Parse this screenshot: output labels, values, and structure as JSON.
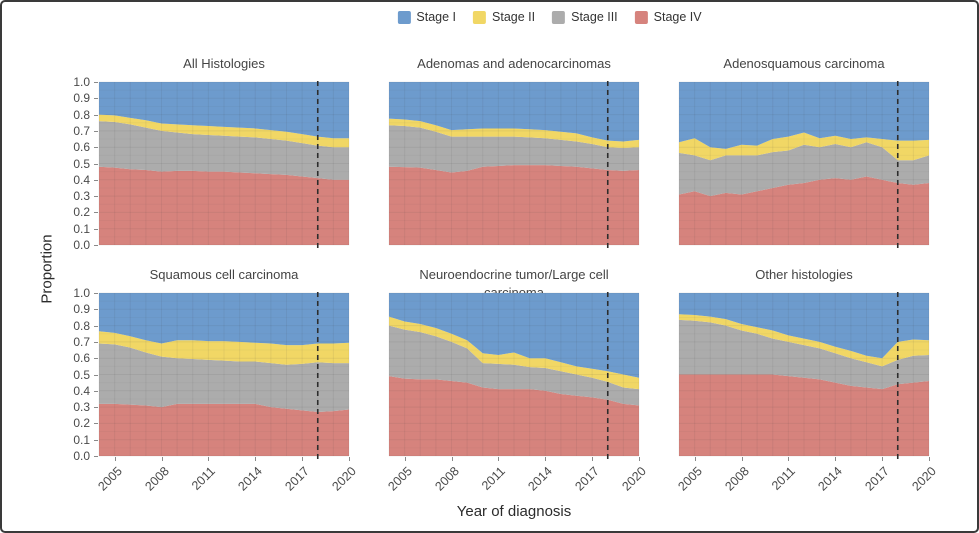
{
  "legend": {
    "items": [
      {
        "label": "Stage I",
        "color": "#6d9bcd"
      },
      {
        "label": "Stage II",
        "color": "#f1d765"
      },
      {
        "label": "Stage III",
        "color": "#acacac"
      },
      {
        "label": "Stage IV",
        "color": "#d6837d"
      }
    ]
  },
  "axes": {
    "y_label": "Proportion",
    "x_label": "Year of diagnosis",
    "y_tick_labels": [
      "1.0",
      "0.9",
      "0.8",
      "0.7",
      "0.6",
      "0.5",
      "0.4",
      "0.3",
      "0.2",
      "0.1",
      "0.0"
    ],
    "x_tick_labels": [
      "2005",
      "2008",
      "2011",
      "2014",
      "2017",
      "2020"
    ],
    "x_tick_years": [
      2005,
      2008,
      2011,
      2014,
      2017,
      2020
    ]
  },
  "chart_data": {
    "type": "area",
    "stacked": true,
    "title": "",
    "xlabel": "Year of diagnosis",
    "ylabel": "Proportion",
    "ylim": [
      0,
      1
    ],
    "grid": true,
    "legend_position": "top",
    "reference_line_x": 2018,
    "reference_line_style": "dashed",
    "x": [
      2004,
      2005,
      2006,
      2007,
      2008,
      2009,
      2010,
      2011,
      2012,
      2013,
      2014,
      2015,
      2016,
      2017,
      2018,
      2019,
      2020
    ],
    "stack_order_bottom_to_top": [
      "Stage IV",
      "Stage III",
      "Stage II",
      "Stage I"
    ],
    "panels": [
      {
        "title": "All Histologies",
        "series": [
          {
            "name": "Stage IV",
            "color": "#d6837d",
            "values": [
              0.48,
              0.475,
              0.465,
              0.46,
              0.45,
              0.455,
              0.455,
              0.45,
              0.45,
              0.445,
              0.44,
              0.435,
              0.43,
              0.42,
              0.41,
              0.4,
              0.4
            ]
          },
          {
            "name": "Stage III",
            "color": "#acacac",
            "values": [
              0.28,
              0.28,
              0.275,
              0.26,
              0.25,
              0.235,
              0.225,
              0.225,
              0.22,
              0.22,
              0.22,
              0.215,
              0.21,
              0.205,
              0.2,
              0.2,
              0.2
            ]
          },
          {
            "name": "Stage II",
            "color": "#f1d765",
            "values": [
              0.04,
              0.04,
              0.04,
              0.045,
              0.045,
              0.05,
              0.055,
              0.055,
              0.055,
              0.055,
              0.055,
              0.055,
              0.055,
              0.055,
              0.055,
              0.055,
              0.055
            ]
          },
          {
            "name": "Stage I",
            "color": "#6d9bcd",
            "values": [
              0.2,
              0.205,
              0.22,
              0.235,
              0.255,
              0.26,
              0.265,
              0.27,
              0.275,
              0.28,
              0.285,
              0.295,
              0.305,
              0.32,
              0.335,
              0.345,
              0.345
            ]
          }
        ]
      },
      {
        "title": "Adenomas and adenocarcinomas",
        "series": [
          {
            "name": "Stage IV",
            "color": "#d6837d",
            "values": [
              0.48,
              0.478,
              0.475,
              0.46,
              0.445,
              0.455,
              0.48,
              0.485,
              0.49,
              0.49,
              0.49,
              0.485,
              0.48,
              0.47,
              0.46,
              0.455,
              0.46
            ]
          },
          {
            "name": "Stage III",
            "color": "#acacac",
            "values": [
              0.255,
              0.252,
              0.245,
              0.235,
              0.22,
              0.21,
              0.185,
              0.18,
              0.175,
              0.17,
              0.165,
              0.16,
              0.155,
              0.15,
              0.14,
              0.14,
              0.14
            ]
          },
          {
            "name": "Stage II",
            "color": "#f1d765",
            "values": [
              0.04,
              0.04,
              0.04,
              0.04,
              0.04,
              0.045,
              0.05,
              0.05,
              0.05,
              0.05,
              0.05,
              0.05,
              0.05,
              0.04,
              0.04,
              0.04,
              0.045
            ]
          },
          {
            "name": "Stage I",
            "color": "#6d9bcd",
            "values": [
              0.225,
              0.23,
              0.24,
              0.265,
              0.295,
              0.29,
              0.285,
              0.285,
              0.285,
              0.29,
              0.295,
              0.305,
              0.315,
              0.34,
              0.36,
              0.365,
              0.355
            ]
          }
        ]
      },
      {
        "title": "Adenosquamous carcinoma",
        "series": [
          {
            "name": "Stage IV",
            "color": "#d6837d",
            "values": [
              0.31,
              0.33,
              0.3,
              0.32,
              0.31,
              0.33,
              0.35,
              0.37,
              0.38,
              0.4,
              0.41,
              0.4,
              0.42,
              0.4,
              0.38,
              0.37,
              0.38
            ]
          },
          {
            "name": "Stage III",
            "color": "#acacac",
            "values": [
              0.255,
              0.22,
              0.22,
              0.23,
              0.24,
              0.22,
              0.22,
              0.21,
              0.235,
              0.2,
              0.21,
              0.2,
              0.21,
              0.2,
              0.14,
              0.15,
              0.17
            ]
          },
          {
            "name": "Stage II",
            "color": "#f1d765",
            "values": [
              0.065,
              0.105,
              0.08,
              0.04,
              0.065,
              0.06,
              0.08,
              0.085,
              0.075,
              0.055,
              0.05,
              0.05,
              0.03,
              0.05,
              0.12,
              0.12,
              0.095
            ]
          },
          {
            "name": "Stage I",
            "color": "#6d9bcd",
            "values": [
              0.37,
              0.345,
              0.4,
              0.41,
              0.385,
              0.39,
              0.35,
              0.335,
              0.31,
              0.345,
              0.33,
              0.35,
              0.34,
              0.35,
              0.36,
              0.36,
              0.355
            ]
          }
        ]
      },
      {
        "title": "Squamous cell carcinoma",
        "series": [
          {
            "name": "Stage IV",
            "color": "#d6837d",
            "values": [
              0.32,
              0.32,
              0.315,
              0.31,
              0.3,
              0.32,
              0.32,
              0.32,
              0.32,
              0.32,
              0.32,
              0.3,
              0.29,
              0.28,
              0.27,
              0.275,
              0.285
            ]
          },
          {
            "name": "Stage III",
            "color": "#acacac",
            "values": [
              0.37,
              0.365,
              0.35,
              0.325,
              0.31,
              0.28,
              0.275,
              0.27,
              0.265,
              0.26,
              0.26,
              0.27,
              0.27,
              0.285,
              0.305,
              0.295,
              0.285
            ]
          },
          {
            "name": "Stage II",
            "color": "#f1d765",
            "values": [
              0.075,
              0.07,
              0.07,
              0.075,
              0.08,
              0.11,
              0.115,
              0.115,
              0.12,
              0.12,
              0.115,
              0.12,
              0.12,
              0.115,
              0.115,
              0.12,
              0.125
            ]
          },
          {
            "name": "Stage I",
            "color": "#6d9bcd",
            "values": [
              0.235,
              0.245,
              0.265,
              0.29,
              0.31,
              0.29,
              0.29,
              0.295,
              0.295,
              0.3,
              0.305,
              0.31,
              0.32,
              0.32,
              0.31,
              0.31,
              0.305
            ]
          }
        ]
      },
      {
        "title": "Neuroendocrine tumor/Large cell carcinoma",
        "series": [
          {
            "name": "Stage IV",
            "color": "#d6837d",
            "values": [
              0.49,
              0.475,
              0.47,
              0.47,
              0.46,
              0.45,
              0.42,
              0.41,
              0.41,
              0.41,
              0.4,
              0.38,
              0.37,
              0.36,
              0.345,
              0.32,
              0.31
            ]
          },
          {
            "name": "Stage III",
            "color": "#acacac",
            "values": [
              0.31,
              0.3,
              0.29,
              0.265,
              0.24,
              0.21,
              0.15,
              0.155,
              0.15,
              0.135,
              0.14,
              0.14,
              0.13,
              0.12,
              0.11,
              0.1,
              0.1
            ]
          },
          {
            "name": "Stage II",
            "color": "#f1d765",
            "values": [
              0.055,
              0.05,
              0.05,
              0.05,
              0.05,
              0.05,
              0.06,
              0.055,
              0.075,
              0.055,
              0.06,
              0.055,
              0.05,
              0.055,
              0.065,
              0.08,
              0.07
            ]
          },
          {
            "name": "Stage I",
            "color": "#6d9bcd",
            "values": [
              0.145,
              0.175,
              0.19,
              0.215,
              0.25,
              0.29,
              0.37,
              0.38,
              0.365,
              0.4,
              0.4,
              0.425,
              0.45,
              0.465,
              0.48,
              0.5,
              0.52
            ]
          }
        ]
      },
      {
        "title": "Other histologies",
        "series": [
          {
            "name": "Stage IV",
            "color": "#d6837d",
            "values": [
              0.5,
              0.5,
              0.5,
              0.5,
              0.5,
              0.5,
              0.5,
              0.49,
              0.48,
              0.47,
              0.45,
              0.43,
              0.42,
              0.41,
              0.44,
              0.45,
              0.46
            ]
          },
          {
            "name": "Stage III",
            "color": "#acacac",
            "values": [
              0.335,
              0.33,
              0.32,
              0.3,
              0.27,
              0.25,
              0.22,
              0.21,
              0.2,
              0.19,
              0.18,
              0.17,
              0.155,
              0.14,
              0.15,
              0.165,
              0.16
            ]
          },
          {
            "name": "Stage II",
            "color": "#f1d765",
            "values": [
              0.035,
              0.035,
              0.035,
              0.04,
              0.04,
              0.04,
              0.05,
              0.04,
              0.04,
              0.04,
              0.04,
              0.045,
              0.04,
              0.05,
              0.11,
              0.1,
              0.09
            ]
          },
          {
            "name": "Stage I",
            "color": "#6d9bcd",
            "values": [
              0.13,
              0.135,
              0.145,
              0.16,
              0.19,
              0.21,
              0.23,
              0.26,
              0.28,
              0.3,
              0.33,
              0.355,
              0.385,
              0.4,
              0.3,
              0.285,
              0.29
            ]
          }
        ]
      }
    ]
  }
}
